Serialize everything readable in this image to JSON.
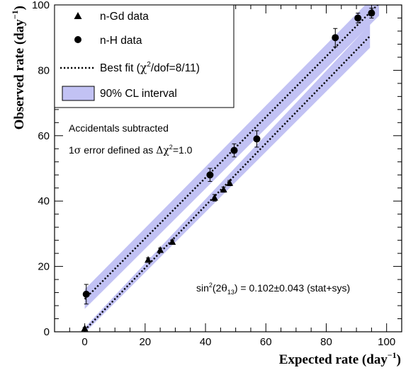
{
  "chart_data": {
    "type": "scatter",
    "xlabel": "Expected rate (day",
    "xlabel_unit_sup": "−1",
    "xlabel_close": ")",
    "ylabel": "Observed rate (day",
    "ylabel_unit_sup": "−1",
    "ylabel_close": ")",
    "xlim": [
      -10,
      105
    ],
    "ylim": [
      0,
      100
    ],
    "xticks": [
      0,
      20,
      40,
      60,
      80,
      100
    ],
    "yticks": [
      0,
      20,
      40,
      60,
      80,
      100
    ],
    "grid": false,
    "legend_placement": "top-left",
    "colors": {
      "band": "#c2c2f4",
      "markers": "#000000",
      "fit": "#000000"
    },
    "legend": {
      "ngd": "n-Gd data",
      "nh": "n-H data",
      "fit_prefix": "Best fit (",
      "fit_chi": "χ",
      "fit_sup": "2",
      "fit_suffix": "/dof=8/11)",
      "band": "90% CL interval"
    },
    "annotations": {
      "accidentals": "Accidentals subtracted",
      "error_prefix": "1",
      "error_sigma": "σ",
      "error_mid": " error defined as ",
      "error_delta": "Δχ",
      "error_sup": "2",
      "error_suffix": "=1.0",
      "sin_prefix": "sin",
      "sin_sup": "2",
      "sin_open": "(2",
      "sin_theta": "θ",
      "sin_sub": "13",
      "sin_suffix": ") = 0.102±0.043 (stat+sys)"
    },
    "series": [
      {
        "name": "n-Gd data",
        "marker": "triangle",
        "x": [
          0,
          21,
          25,
          29,
          43,
          46,
          48
        ],
        "y": [
          1.0,
          22.0,
          25.0,
          27.5,
          41.0,
          43.5,
          45.5
        ],
        "yerr": [
          0.3,
          0.6,
          0.6,
          0.6,
          1.0,
          0.8,
          0.8
        ]
      },
      {
        "name": "n-H data",
        "marker": "circle",
        "x": [
          0.5,
          41.5,
          49.5,
          57,
          83,
          90.5,
          95
        ],
        "y": [
          11.5,
          48.0,
          55.5,
          59.0,
          90.0,
          96.0,
          97.5
        ],
        "yerr": [
          3.0,
          2.0,
          2.0,
          2.5,
          2.8,
          1.5,
          1.5
        ]
      }
    ],
    "fits": [
      {
        "name": "n-Gd",
        "x": [
          0,
          94.5
        ],
        "y": [
          0.5,
          90.5
        ],
        "band_halfwidth": [
          0.8,
          3.6
        ]
      },
      {
        "name": "n-H",
        "x": [
          0,
          97.5
        ],
        "y": [
          10.0,
          100.5
        ],
        "band_halfwidth": [
          3.0,
          3.8
        ]
      }
    ]
  }
}
